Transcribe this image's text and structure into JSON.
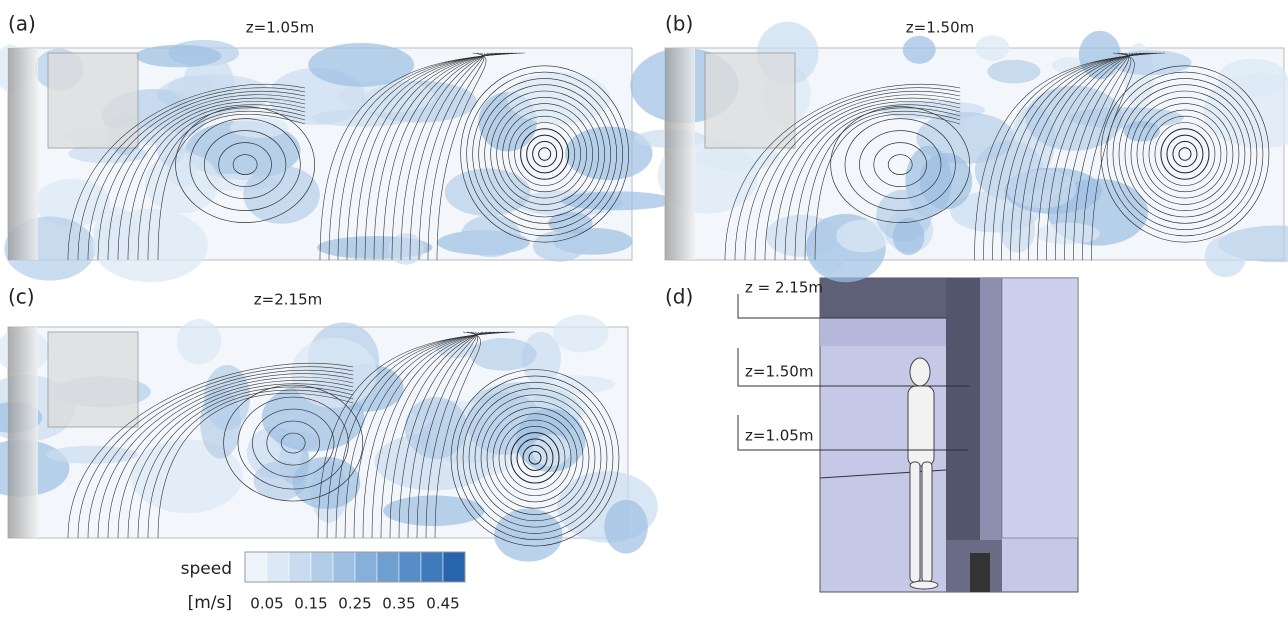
{
  "panels": [
    {
      "label": "(a)",
      "title": "z=1.05m"
    },
    {
      "label": "(b)",
      "title": "z=1.50m"
    },
    {
      "label": "(c)",
      "title": "z=2.15m"
    },
    {
      "label": "(d)",
      "levels": [
        "z = 2.15m",
        "z=1.50m",
        "z=1.05m"
      ]
    }
  ],
  "colorbar": {
    "title": "speed",
    "unit": "[m/s]",
    "ticks": [
      0.05,
      0.15,
      0.25,
      0.35,
      0.45
    ],
    "range": [
      0,
      0.5
    ],
    "colors": [
      "#eef4fb",
      "#dce8f5",
      "#c9dcef",
      "#b3cde8",
      "#9dbfe2",
      "#86b0da",
      "#6e9fd1",
      "#568dc6",
      "#3f7bbb",
      "#2864ac"
    ]
  }
}
